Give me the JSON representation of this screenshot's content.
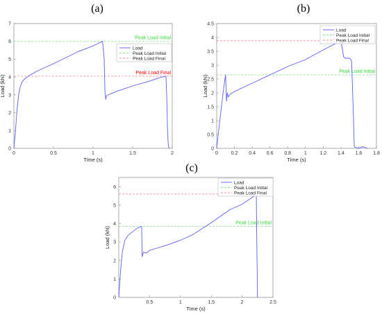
{
  "figure": {
    "panel_labels": [
      "(a)",
      "(b)",
      "(c)"
    ]
  },
  "colors": {
    "load": "#5b5bff",
    "initial": "#7fe07f",
    "final": "#f08a8a",
    "initial_text": "#33dd33",
    "final_text": "#ff0000"
  },
  "chart_data": [
    {
      "type": "line",
      "panel": "(a)",
      "xlabel": "Time (s)",
      "ylabel": "Load (kN)",
      "xlim": [
        0,
        2
      ],
      "ylim": [
        0,
        7
      ],
      "xticks": [
        "0",
        "0.5",
        "1",
        "1.5",
        "2"
      ],
      "yticks": [
        "0",
        "1",
        "2",
        "3",
        "4",
        "5",
        "6",
        "7"
      ],
      "legend_position": "top-right",
      "legend": [
        "Load",
        "Peak Load Initial",
        "Peak Load Final"
      ],
      "series": [
        {
          "name": "Load",
          "x": [
            0,
            0.02,
            0.04,
            0.06,
            0.08,
            0.1,
            0.12,
            0.15,
            0.2,
            0.3,
            0.5,
            0.8,
            1.0,
            1.12,
            1.14,
            1.15,
            1.16,
            1.17,
            1.19,
            1.3,
            1.5,
            1.7,
            1.85,
            1.92,
            1.93,
            1.94,
            1.95,
            1.96
          ],
          "y": [
            0,
            1.0,
            2.2,
            3.0,
            3.45,
            3.7,
            3.82,
            3.95,
            4.1,
            4.35,
            4.75,
            5.4,
            5.75,
            6.0,
            5.0,
            3.2,
            2.75,
            2.95,
            3.0,
            3.2,
            3.5,
            3.75,
            3.98,
            4.05,
            3.0,
            1.0,
            0.2,
            0
          ]
        }
      ],
      "hlines": [
        {
          "name": "Peak Load Initial",
          "y": 6.0,
          "label": "Peak Load Initial"
        },
        {
          "name": "Peak Load Final",
          "y": 4.05,
          "label": "Peak Load Final"
        }
      ]
    },
    {
      "type": "line",
      "panel": "(b)",
      "xlabel": "Time (s)",
      "ylabel": "Load (kN)",
      "xlim": [
        0,
        1.8
      ],
      "ylim": [
        0,
        4.5
      ],
      "xticks": [
        "0",
        "0.2",
        "0.4",
        "0.6",
        "0.8",
        "1",
        "1.2",
        "1.4",
        "1.6",
        "1.8"
      ],
      "yticks": [
        "0",
        "0.5",
        "1",
        "1.5",
        "2",
        "2.5",
        "3",
        "3.5",
        "4",
        "4.5"
      ],
      "legend_position": "top-right",
      "legend": [
        "Load",
        "Peak Load Initial",
        "Peak Load Final"
      ],
      "series": [
        {
          "name": "Load",
          "x": [
            0,
            0.02,
            0.05,
            0.08,
            0.1,
            0.11,
            0.12,
            0.13,
            0.15,
            0.2,
            0.3,
            0.5,
            0.8,
            1.0,
            1.2,
            1.4,
            1.41,
            1.43,
            1.45,
            1.5,
            1.52,
            1.54,
            1.55,
            1.6,
            1.63,
            1.66,
            1.7
          ],
          "y": [
            0,
            0.6,
            1.4,
            2.2,
            2.65,
            1.7,
            2.0,
            1.85,
            1.95,
            2.05,
            2.2,
            2.5,
            2.95,
            3.2,
            3.55,
            3.88,
            3.7,
            3.3,
            3.25,
            3.25,
            3.15,
            1.2,
            0.05,
            0.0,
            0.05,
            0.05,
            0
          ]
        }
      ],
      "hlines": [
        {
          "name": "Peak Load Initial",
          "y": 2.65,
          "label": "Peak Load Initial"
        },
        {
          "name": "Peak Load Final",
          "y": 3.88,
          "label": "Peak Load Final"
        }
      ]
    },
    {
      "type": "line",
      "panel": "(c)",
      "xlabel": "Time (s)",
      "ylabel": "Load (kN)",
      "xlim": [
        0,
        2.5
      ],
      "ylim": [
        0,
        6.5
      ],
      "xticks": [
        "0.5",
        "1",
        "1.5",
        "2",
        "2.5"
      ],
      "yticks": [
        "0",
        "1",
        "2",
        "3",
        "4",
        "5",
        "6"
      ],
      "legend_position": "top-right",
      "legend": [
        "Load",
        "Peak Load Initial",
        "Peak Load Final"
      ],
      "series": [
        {
          "name": "Load",
          "x": [
            0.0,
            0.03,
            0.06,
            0.1,
            0.15,
            0.2,
            0.3,
            0.37,
            0.38,
            0.4,
            0.45,
            0.5,
            0.6,
            0.8,
            1.0,
            1.2,
            1.5,
            1.8,
            2.0,
            2.2,
            2.23,
            2.24,
            2.25
          ],
          "y": [
            0,
            1.5,
            2.5,
            3.1,
            3.35,
            3.5,
            3.75,
            3.85,
            2.2,
            2.45,
            2.4,
            2.55,
            2.65,
            2.85,
            3.1,
            3.4,
            4.05,
            4.75,
            5.05,
            5.5,
            5.6,
            2.5,
            0
          ]
        }
      ],
      "hlines": [
        {
          "name": "Peak Load Initial",
          "y": 3.85,
          "label": "Peak Load Initial"
        },
        {
          "name": "Peak Load Final",
          "y": 5.6,
          "label": "Peak Load Final"
        }
      ]
    }
  ]
}
